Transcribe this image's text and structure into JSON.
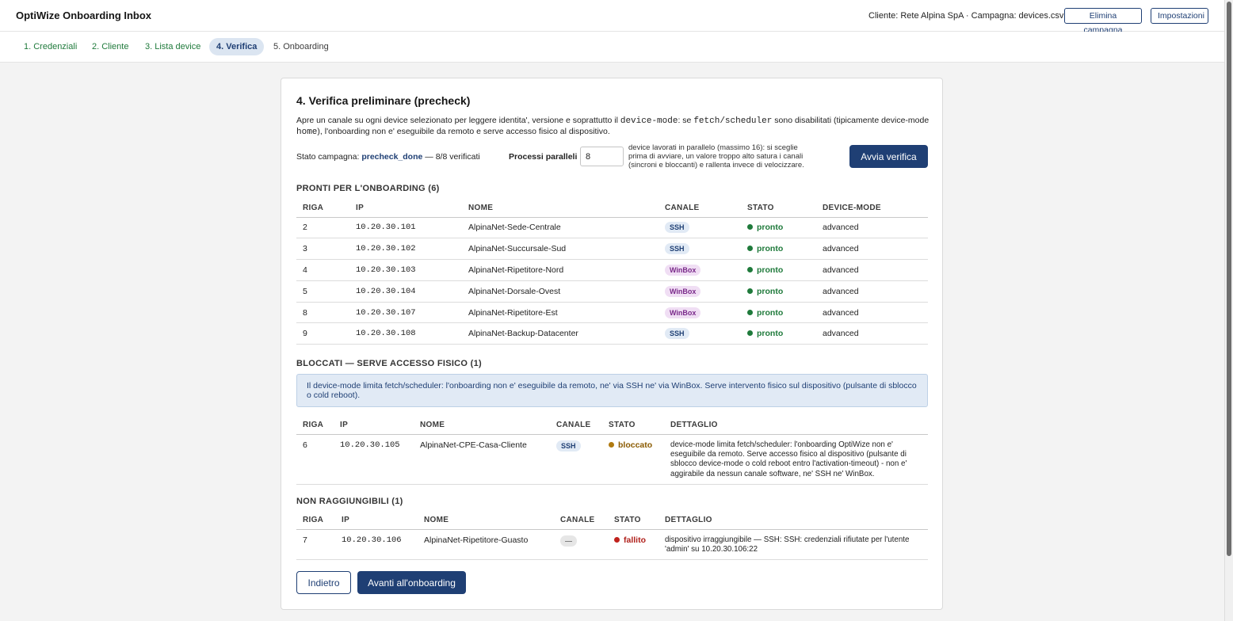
{
  "header": {
    "title": "OptiWize Onboarding Inbox",
    "client_info": "Cliente: Rete Alpina SpA · Campagna: devices.csv",
    "delete_label": "Elimina campagna",
    "settings_label": "Impostazioni"
  },
  "steps": [
    {
      "label": "1. Credenziali",
      "state": "done"
    },
    {
      "label": "2. Cliente",
      "state": "done"
    },
    {
      "label": "3. Lista device",
      "state": "done"
    },
    {
      "label": "4. Verifica",
      "state": "active"
    },
    {
      "label": "5. Onboarding",
      "state": "pending"
    }
  ],
  "main": {
    "title": "4. Verifica preliminare (precheck)",
    "intro": {
      "part1": "Apre un canale su ogni device selezionato per leggere identita', versione e soprattutto il ",
      "code1": "device-mode",
      "part2": ": se ",
      "code2": "fetch/scheduler",
      "part3": " sono disabilitati (tipicamente device-mode ",
      "code3": "home",
      "part4": "), l'onboarding non e' eseguibile da remoto e serve accesso fisico al dispositivo."
    },
    "status": {
      "label": "Stato campagna:",
      "value": "precheck_done",
      "sep": "—",
      "verified": "8/8 verificati"
    },
    "parallel": {
      "label": "Processi paralleli",
      "value": "8",
      "help": "device lavorati in parallelo (massimo 16): si sceglie prima di avviare, un valore troppo alto satura i canali (sincroni e bloccanti) e rallenta invece di velocizzare."
    },
    "start_label": "Avvia verifica"
  },
  "ready": {
    "title": "PRONTI PER L'ONBOARDING (6)",
    "headers": [
      "RIGA",
      "IP",
      "NOME",
      "CANALE",
      "STATO",
      "DEVICE-MODE"
    ],
    "rows": [
      {
        "row": "2",
        "ip": "10.20.30.101",
        "name": "AlpinaNet-Sede-Centrale",
        "channel": "SSH",
        "status": "pronto",
        "mode": "advanced"
      },
      {
        "row": "3",
        "ip": "10.20.30.102",
        "name": "AlpinaNet-Succursale-Sud",
        "channel": "SSH",
        "status": "pronto",
        "mode": "advanced"
      },
      {
        "row": "4",
        "ip": "10.20.30.103",
        "name": "AlpinaNet-Ripetitore-Nord",
        "channel": "WinBox",
        "status": "pronto",
        "mode": "advanced"
      },
      {
        "row": "5",
        "ip": "10.20.30.104",
        "name": "AlpinaNet-Dorsale-Ovest",
        "channel": "WinBox",
        "status": "pronto",
        "mode": "advanced"
      },
      {
        "row": "8",
        "ip": "10.20.30.107",
        "name": "AlpinaNet-Ripetitore-Est",
        "channel": "WinBox",
        "status": "pronto",
        "mode": "advanced"
      },
      {
        "row": "9",
        "ip": "10.20.30.108",
        "name": "AlpinaNet-Backup-Datacenter",
        "channel": "SSH",
        "status": "pronto",
        "mode": "advanced"
      }
    ]
  },
  "blocked": {
    "title": "BLOCCATI — SERVE ACCESSO FISICO (1)",
    "info": "Il device-mode limita fetch/scheduler: l'onboarding non e' eseguibile da remoto, ne' via SSH ne' via WinBox. Serve intervento fisico sul dispositivo (pulsante di sblocco o cold reboot).",
    "headers": [
      "RIGA",
      "IP",
      "NOME",
      "CANALE",
      "STATO",
      "DETTAGLIO"
    ],
    "rows": [
      {
        "row": "6",
        "ip": "10.20.30.105",
        "name": "AlpinaNet-CPE-Casa-Cliente",
        "channel": "SSH",
        "status": "bloccato",
        "detail": "device-mode limita fetch/scheduler: l'onboarding OptiWize non e' eseguibile da remoto. Serve accesso fisico al dispositivo (pulsante di sblocco device-mode o cold reboot entro l'activation-timeout) - non e' aggirabile da nessun canale software, ne' SSH ne' WinBox."
      }
    ]
  },
  "unreachable": {
    "title": "NON RAGGIUNGIBILI (1)",
    "headers": [
      "RIGA",
      "IP",
      "NOME",
      "CANALE",
      "STATO",
      "DETTAGLIO"
    ],
    "rows": [
      {
        "row": "7",
        "ip": "10.20.30.106",
        "name": "AlpinaNet-Ripetitore-Guasto",
        "channel": "—",
        "status": "fallito",
        "detail": "dispositivo irraggiungibile — SSH: SSH: credenziali rifiutate per l'utente 'admin' su 10.20.30.106:22"
      }
    ]
  },
  "footer": {
    "back_label": "Indietro",
    "next_label": "Avanti all'onboarding"
  },
  "colors": {
    "primary": "#1f3f74",
    "ok": "#1f7a3b",
    "blocked": "#8a5a00",
    "failed": "#b0201b",
    "ssh_badge": "#e1eaf5",
    "winbox_badge": "#f0def4"
  }
}
